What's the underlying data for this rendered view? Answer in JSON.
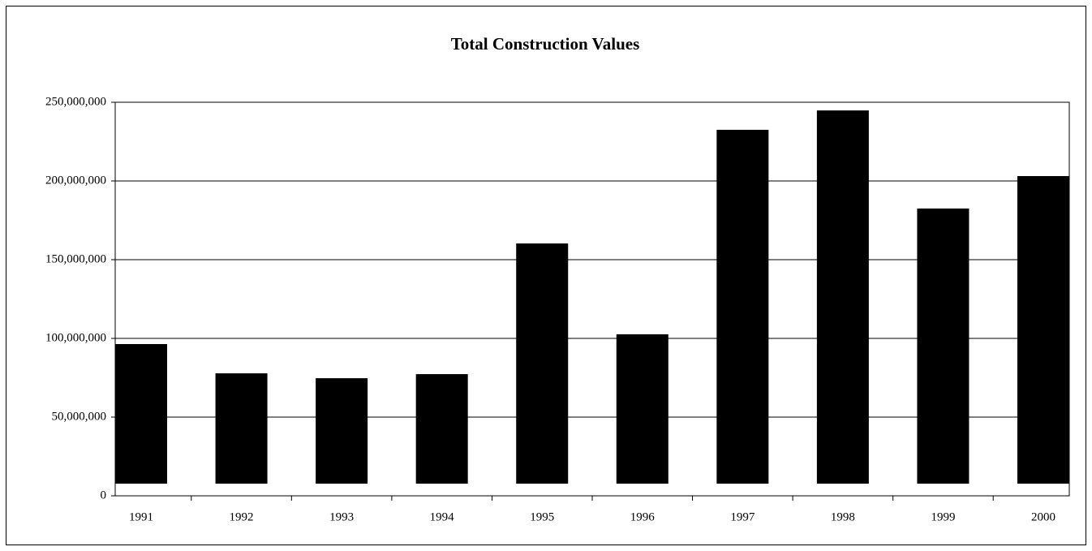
{
  "chart_data": {
    "type": "bar",
    "title": "Total Construction Values",
    "categories": [
      "1991",
      "1992",
      "1993",
      "1994",
      "1995",
      "1996",
      "1997",
      "1998",
      "1999",
      "2000"
    ],
    "values": [
      96400000,
      77800000,
      74700000,
      77300000,
      160300000,
      102600000,
      232500000,
      244800000,
      182500000,
      203100000
    ],
    "color": "#000000",
    "ylim": [
      0,
      250000000
    ],
    "yticks": [
      0,
      {
        "value": 50000000,
        "label": "50,000,000"
      },
      {
        "value": 100000000,
        "label": "100,000,000"
      },
      {
        "value": 150000000,
        "label": "150,000,000"
      },
      {
        "value": 200000000,
        "label": "200,000,000"
      },
      {
        "value": 250000000,
        "label": "250,000,000"
      }
    ],
    "grid": true
  }
}
